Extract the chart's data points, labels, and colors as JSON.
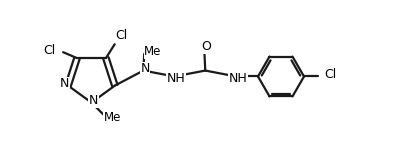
{
  "background_color": "#ffffff",
  "line_color": "#1a1a1a",
  "line_width": 1.6,
  "font_size": 8.5,
  "figsize": [
    4.05,
    1.6
  ],
  "dpi": 100,
  "xlim": [
    0,
    9.5
  ],
  "ylim": [
    0,
    4.0
  ]
}
